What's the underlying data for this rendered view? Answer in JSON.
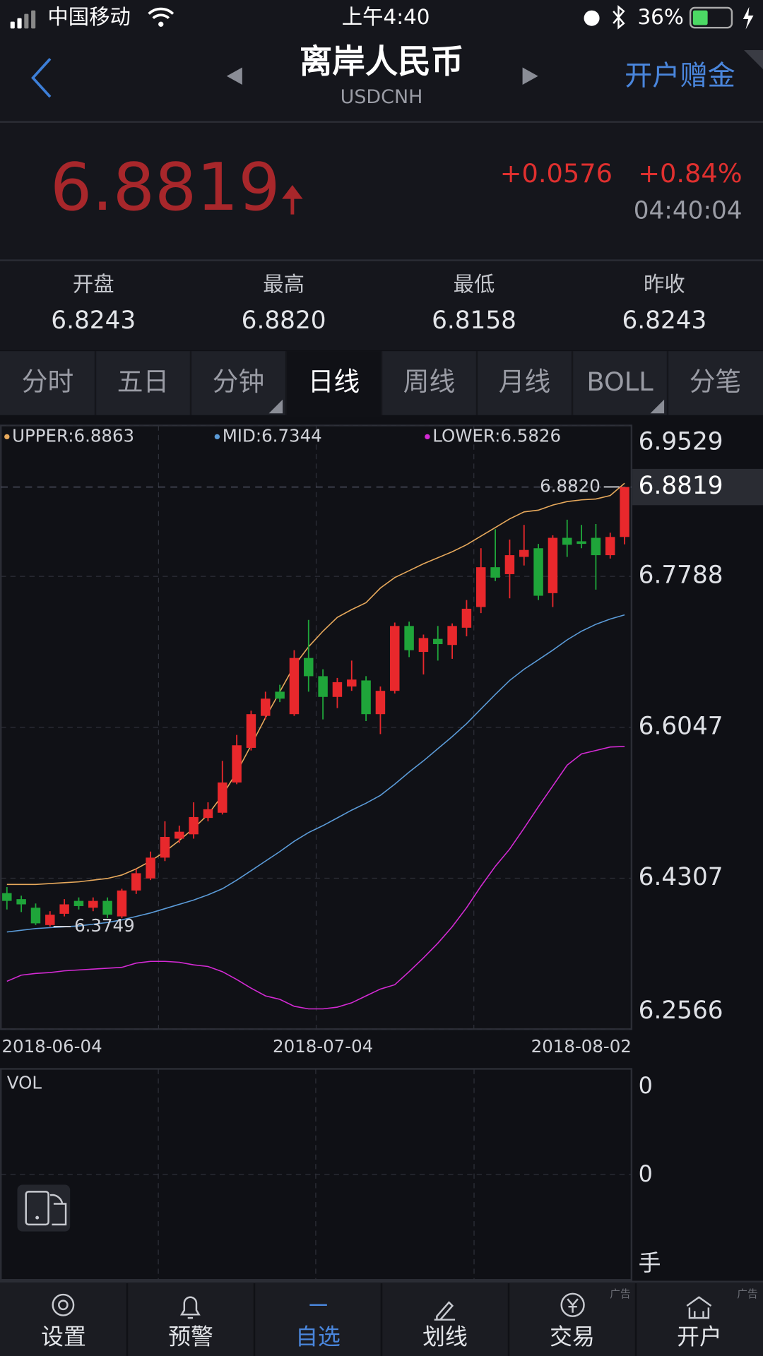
{
  "status_bar": {
    "carrier": "中国移动",
    "time": "上午4:40",
    "battery": "36%"
  },
  "header": {
    "title": "离岸人民币",
    "subtitle": "USDCNH",
    "action": "开户赠金"
  },
  "quote": {
    "price": "6.8819",
    "change": "+0.0576",
    "change_pct": "+0.84%",
    "time": "04:40:04"
  },
  "stats": [
    {
      "label": "开盘",
      "value": "6.8243"
    },
    {
      "label": "最高",
      "value": "6.8820"
    },
    {
      "label": "最低",
      "value": "6.8158"
    },
    {
      "label": "昨收",
      "value": "6.8243"
    }
  ],
  "tabs": [
    "分时",
    "五日",
    "分钟",
    "日线",
    "周线",
    "月线",
    "BOLL",
    "分笔"
  ],
  "active_tab": 3,
  "chart_data": {
    "type": "candlestick",
    "categories": [
      "2018-06-04",
      null,
      null,
      null,
      null,
      null,
      null,
      null,
      null,
      null,
      null,
      null,
      null,
      null,
      null,
      null,
      null,
      null,
      null,
      null,
      null,
      null,
      "2018-07-04",
      null,
      null,
      null,
      null,
      null,
      null,
      null,
      null,
      null,
      null,
      null,
      null,
      null,
      null,
      null,
      null,
      null,
      null,
      null,
      null,
      "2018-08-02"
    ],
    "open": [
      6.4135,
      6.4065,
      6.3966,
      6.3766,
      6.3896,
      6.4045,
      6.3966,
      6.4045,
      6.3866,
      6.4165,
      6.4304,
      6.4544,
      6.4763,
      6.4813,
      6.5002,
      6.5062,
      6.5411,
      6.581,
      6.6179,
      6.6458,
      6.6199,
      6.6847,
      6.6637,
      6.6398,
      6.6518,
      6.6588,
      6.6199,
      6.6468,
      6.7216,
      6.6917,
      6.7067,
      6.6997,
      6.7196,
      6.7435,
      6.7894,
      6.7814,
      6.8013,
      6.8113,
      6.7595,
      6.8233,
      6.8193,
      6.8233,
      6.8033,
      6.8243
    ],
    "high": [
      6.4205,
      6.4105,
      6.4015,
      6.3926,
      6.4065,
      6.4085,
      6.4085,
      6.4085,
      6.4185,
      6.4414,
      6.4614,
      6.4963,
      6.4913,
      6.5182,
      6.5182,
      6.566,
      6.5959,
      6.6239,
      6.6458,
      6.6538,
      6.6937,
      6.7286,
      6.6717,
      6.6617,
      6.6817,
      6.6637,
      6.6518,
      6.7256,
      6.7266,
      6.7117,
      6.7216,
      6.7246,
      6.7515,
      6.8113,
      6.8332,
      6.8213,
      6.8382,
      6.8163,
      6.8262,
      6.8442,
      6.8382,
      6.8392,
      6.8292,
      6.882
    ],
    "low": [
      6.3946,
      6.3916,
      6.3766,
      6.3749,
      6.3866,
      6.3946,
      6.3926,
      6.3846,
      6.3846,
      6.4125,
      6.4285,
      6.4504,
      6.4713,
      6.4763,
      6.4963,
      6.5042,
      6.5391,
      6.578,
      6.6139,
      6.6338,
      6.6179,
      6.6458,
      6.6139,
      6.6269,
      6.6468,
      6.6119,
      6.5969,
      6.6438,
      6.6857,
      6.6657,
      6.6817,
      6.6837,
      6.7097,
      6.7365,
      6.7734,
      6.7535,
      6.7914,
      6.7515,
      6.7435,
      6.8013,
      6.8113,
      6.7635,
      6.7994,
      6.8158
    ],
    "close": [
      6.4045,
      6.4005,
      6.3786,
      6.3886,
      6.4005,
      6.3985,
      6.4045,
      6.3886,
      6.4165,
      6.4364,
      6.4544,
      6.4783,
      6.4843,
      6.5012,
      6.5102,
      6.5411,
      6.584,
      6.6199,
      6.6378,
      6.6378,
      6.6847,
      6.6637,
      6.6398,
      6.6568,
      6.6598,
      6.6199,
      6.6468,
      6.7216,
      6.6937,
      6.7077,
      6.7007,
      6.7216,
      6.7415,
      6.7894,
      6.7774,
      6.8033,
      6.8093,
      6.7565,
      6.8233,
      6.8153,
      6.8163,
      6.8033,
      6.8243,
      6.8819
    ],
    "up_color": "#e8282c",
    "down_color": "#1fa53a",
    "lines": [
      {
        "name": "UPPER:6.8863",
        "color": "#e7a95c",
        "values": [
          6.4235,
          6.4235,
          6.4235,
          6.4245,
          6.4255,
          6.4265,
          6.4285,
          6.4304,
          6.4344,
          6.4414,
          6.4504,
          6.4614,
          6.4743,
          6.4883,
          6.5042,
          6.5262,
          6.5531,
          6.584,
          6.6159,
          6.6458,
          6.6757,
          6.6976,
          6.7156,
          6.7315,
          6.7405,
          6.7485,
          6.7654,
          6.7774,
          6.7854,
          6.7934,
          6.8003,
          6.8073,
          6.8153,
          6.8253,
          6.8352,
          6.8452,
          6.8532,
          6.8552,
          6.8611,
          6.8651,
          6.8671,
          6.8681,
          6.8721,
          6.8863
        ]
      },
      {
        "name": "MID:6.7344",
        "color": "#5b9bd8",
        "values": [
          6.3686,
          6.3706,
          6.3726,
          6.3736,
          6.3746,
          6.3756,
          6.3776,
          6.3796,
          6.3826,
          6.3866,
          6.3906,
          6.3956,
          6.4005,
          6.4055,
          6.4115,
          6.4185,
          6.4285,
          6.4394,
          6.4504,
          6.4614,
          6.4733,
          6.4833,
          6.4913,
          6.5002,
          6.5092,
          6.5172,
          6.5262,
          6.5391,
          6.5531,
          6.566,
          6.58,
          6.594,
          6.6089,
          6.6259,
          6.6428,
          6.6588,
          6.6717,
          6.6827,
          6.6937,
          6.7056,
          6.7156,
          6.7236,
          6.7296,
          6.7344
        ]
      },
      {
        "name": "LOWER:6.5826",
        "color": "#d42ad4",
        "values": [
          6.3118,
          6.3188,
          6.3208,
          6.3218,
          6.3238,
          6.3248,
          6.3258,
          6.3268,
          6.3278,
          6.3327,
          6.3347,
          6.3347,
          6.3337,
          6.3307,
          6.3288,
          6.3228,
          6.3138,
          6.3038,
          6.2949,
          6.2909,
          6.2829,
          6.2799,
          6.2799,
          6.2819,
          6.2869,
          6.2949,
          6.3028,
          6.3078,
          6.3228,
          6.3387,
          6.3557,
          6.3746,
          6.3966,
          6.4215,
          6.4444,
          6.4643,
          6.4883,
          6.5132,
          6.5371,
          6.5611,
          6.574,
          6.578,
          6.582,
          6.5826
        ]
      }
    ],
    "ylim": [
      6.2566,
      6.9529
    ],
    "yticks": [
      6.2566,
      6.4307,
      6.6047,
      6.7788,
      6.9529
    ],
    "grid": true,
    "last_price": 6.8819,
    "annotations": [
      {
        "label": "6.8820",
        "value": 6.882,
        "x": 43
      },
      {
        "label": "6.3749",
        "value": 6.3749,
        "x": 3
      }
    ]
  },
  "vol_panel": {
    "title": "VOL",
    "ticks": [
      "0",
      "0",
      "手"
    ]
  },
  "nav": [
    {
      "label": "设置"
    },
    {
      "label": "预警"
    },
    {
      "label": "自选"
    },
    {
      "label": "划线"
    },
    {
      "label": "交易",
      "badge": "广告"
    },
    {
      "label": "开户",
      "badge": "广告"
    }
  ],
  "active_nav": 2
}
